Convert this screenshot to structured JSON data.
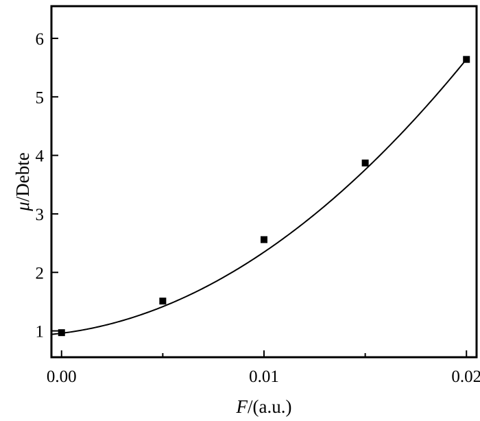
{
  "chart_data": {
    "type": "scatter",
    "title": "",
    "xlabel_var": "F",
    "xlabel_unit": "/(a.u.)",
    "ylabel_var": "μ",
    "ylabel_unit": "/Debte",
    "xlim": [
      -0.0005,
      0.0205
    ],
    "ylim": [
      0.55,
      6.55
    ],
    "x_ticks": [
      0.0,
      0.01,
      0.02
    ],
    "x_tick_labels": [
      "0.00",
      "0.01",
      "0.02"
    ],
    "x_minor_ticks": [
      0.005,
      0.015
    ],
    "y_ticks": [
      1,
      2,
      3,
      4,
      5,
      6
    ],
    "y_tick_labels": [
      "1",
      "2",
      "3",
      "4",
      "5",
      "6"
    ],
    "grid": false,
    "legend": "none",
    "series": [
      {
        "points": [
          {
            "x": 0.0,
            "y": 0.97
          },
          {
            "x": 0.005,
            "y": 1.51
          },
          {
            "x": 0.01,
            "y": 2.56
          },
          {
            "x": 0.015,
            "y": 3.87
          },
          {
            "x": 0.02,
            "y": 5.64
          }
        ],
        "marker": "square",
        "color": "#000000"
      }
    ],
    "fit_curve": {
      "kind": "quadratic",
      "coefficients": [
        0.96,
        43.2,
        9546
      ],
      "x_range": [
        -0.0005,
        0.02
      ],
      "color": "#000000"
    }
  }
}
